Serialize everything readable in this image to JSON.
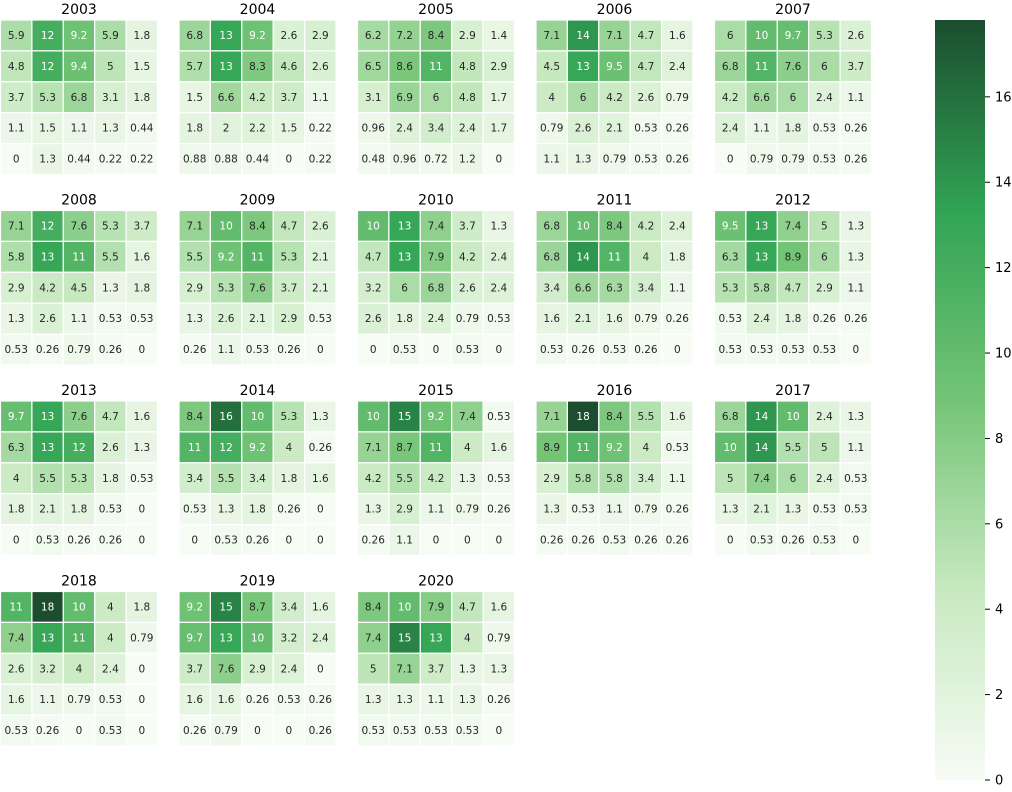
{
  "chart_data": {
    "type": "heatmap",
    "colormap": {
      "name": "Greens",
      "vmin": 0,
      "vmax": 17.8,
      "stops": [
        "#f7fcf5",
        "#c7e9c0",
        "#74c476",
        "#31a354",
        "#1b4d2e"
      ],
      "ticks": [
        "0",
        "2",
        "4",
        "6",
        "8",
        "10",
        "12",
        "14",
        "16"
      ]
    },
    "panels": [
      {
        "title": "2003",
        "values": [
          [
            "5.9",
            "12",
            "9.2",
            "5.9",
            "1.8"
          ],
          [
            "4.8",
            "12",
            "9.4",
            "5",
            "1.5"
          ],
          [
            "3.7",
            "5.3",
            "6.8",
            "3.1",
            "1.8"
          ],
          [
            "1.1",
            "1.5",
            "1.1",
            "1.3",
            "0.44"
          ],
          [
            "0",
            "1.3",
            "0.44",
            "0.22",
            "0.22"
          ]
        ]
      },
      {
        "title": "2004",
        "values": [
          [
            "6.8",
            "13",
            "9.2",
            "2.6",
            "2.9"
          ],
          [
            "5.7",
            "13",
            "8.3",
            "4.6",
            "2.6"
          ],
          [
            "1.5",
            "6.6",
            "4.2",
            "3.7",
            "1.1"
          ],
          [
            "1.8",
            "2",
            "2.2",
            "1.5",
            "0.22"
          ],
          [
            "0.88",
            "0.88",
            "0.44",
            "0",
            "0.22"
          ]
        ]
      },
      {
        "title": "2005",
        "values": [
          [
            "6.2",
            "7.2",
            "8.4",
            "2.9",
            "1.4"
          ],
          [
            "6.5",
            "8.6",
            "11",
            "4.8",
            "2.9"
          ],
          [
            "3.1",
            "6.9",
            "6",
            "4.8",
            "1.7"
          ],
          [
            "0.96",
            "2.4",
            "3.4",
            "2.4",
            "1.7"
          ],
          [
            "0.48",
            "0.96",
            "0.72",
            "1.2",
            "0"
          ]
        ]
      },
      {
        "title": "2006",
        "values": [
          [
            "7.1",
            "14",
            "7.1",
            "4.7",
            "1.6"
          ],
          [
            "4.5",
            "13",
            "9.5",
            "4.7",
            "2.4"
          ],
          [
            "4",
            "6",
            "4.2",
            "2.6",
            "0.79"
          ],
          [
            "0.79",
            "2.6",
            "2.1",
            "0.53",
            "0.26"
          ],
          [
            "1.1",
            "1.3",
            "0.79",
            "0.53",
            "0.26"
          ]
        ]
      },
      {
        "title": "2007",
        "values": [
          [
            "6",
            "10",
            "9.7",
            "5.3",
            "2.6"
          ],
          [
            "6.8",
            "11",
            "7.6",
            "6",
            "3.7"
          ],
          [
            "4.2",
            "6.6",
            "6",
            "2.4",
            "1.1"
          ],
          [
            "2.4",
            "1.1",
            "1.8",
            "0.53",
            "0.26"
          ],
          [
            "0",
            "0.79",
            "0.79",
            "0.53",
            "0.26"
          ]
        ]
      },
      {
        "title": "2008",
        "values": [
          [
            "7.1",
            "12",
            "7.6",
            "5.3",
            "3.7"
          ],
          [
            "5.8",
            "13",
            "11",
            "5.5",
            "1.6"
          ],
          [
            "2.9",
            "4.2",
            "4.5",
            "1.3",
            "1.8"
          ],
          [
            "1.3",
            "2.6",
            "1.1",
            "0.53",
            "0.53"
          ],
          [
            "0.53",
            "0.26",
            "0.79",
            "0.26",
            "0"
          ]
        ]
      },
      {
        "title": "2009",
        "values": [
          [
            "7.1",
            "10",
            "8.4",
            "4.7",
            "2.6"
          ],
          [
            "5.5",
            "9.2",
            "11",
            "5.3",
            "2.1"
          ],
          [
            "2.9",
            "5.3",
            "7.6",
            "3.7",
            "2.1"
          ],
          [
            "1.3",
            "2.6",
            "2.1",
            "2.9",
            "0.53"
          ],
          [
            "0.26",
            "1.1",
            "0.53",
            "0.26",
            "0"
          ]
        ]
      },
      {
        "title": "2010",
        "values": [
          [
            "10",
            "13",
            "7.4",
            "3.7",
            "1.3"
          ],
          [
            "4.7",
            "13",
            "7.9",
            "4.2",
            "2.4"
          ],
          [
            "3.2",
            "6",
            "6.8",
            "2.6",
            "2.4"
          ],
          [
            "2.6",
            "1.8",
            "2.4",
            "0.79",
            "0.53"
          ],
          [
            "0",
            "0.53",
            "0",
            "0.53",
            "0"
          ]
        ]
      },
      {
        "title": "2011",
        "values": [
          [
            "6.8",
            "10",
            "8.4",
            "4.2",
            "2.4"
          ],
          [
            "6.8",
            "14",
            "11",
            "4",
            "1.8"
          ],
          [
            "3.4",
            "6.6",
            "6.3",
            "3.4",
            "1.1"
          ],
          [
            "1.6",
            "2.1",
            "1.6",
            "0.79",
            "0.26"
          ],
          [
            "0.53",
            "0.26",
            "0.53",
            "0.26",
            "0"
          ]
        ]
      },
      {
        "title": "2012",
        "values": [
          [
            "9.5",
            "13",
            "7.4",
            "5",
            "1.3"
          ],
          [
            "6.3",
            "13",
            "8.9",
            "6",
            "1.3"
          ],
          [
            "5.3",
            "5.8",
            "4.7",
            "2.9",
            "1.1"
          ],
          [
            "0.53",
            "2.4",
            "1.8",
            "0.26",
            "0.26"
          ],
          [
            "0.53",
            "0.53",
            "0.53",
            "0.53",
            "0"
          ]
        ]
      },
      {
        "title": "2013",
        "values": [
          [
            "9.7",
            "13",
            "7.6",
            "4.7",
            "1.6"
          ],
          [
            "6.3",
            "13",
            "12",
            "2.6",
            "1.3"
          ],
          [
            "4",
            "5.5",
            "5.3",
            "1.8",
            "0.53"
          ],
          [
            "1.8",
            "2.1",
            "1.8",
            "0.53",
            "0"
          ],
          [
            "0",
            "0.53",
            "0.26",
            "0.26",
            "0"
          ]
        ]
      },
      {
        "title": "2014",
        "values": [
          [
            "8.4",
            "16",
            "10",
            "5.3",
            "1.3"
          ],
          [
            "11",
            "12",
            "9.2",
            "4",
            "0.26"
          ],
          [
            "3.4",
            "5.5",
            "3.4",
            "1.8",
            "1.6"
          ],
          [
            "0.53",
            "1.3",
            "1.8",
            "0.26",
            "0"
          ],
          [
            "0",
            "0.53",
            "0.26",
            "0",
            "0"
          ]
        ]
      },
      {
        "title": "2015",
        "values": [
          [
            "10",
            "15",
            "9.2",
            "7.4",
            "0.53"
          ],
          [
            "7.1",
            "8.7",
            "11",
            "4",
            "1.6"
          ],
          [
            "4.2",
            "5.5",
            "4.2",
            "1.3",
            "0.53"
          ],
          [
            "1.3",
            "2.9",
            "1.1",
            "0.79",
            "0.26"
          ],
          [
            "0.26",
            "1.1",
            "0",
            "0",
            "0"
          ]
        ]
      },
      {
        "title": "2016",
        "values": [
          [
            "7.1",
            "18",
            "8.4",
            "5.5",
            "1.6"
          ],
          [
            "8.9",
            "11",
            "9.2",
            "4",
            "0.53"
          ],
          [
            "2.9",
            "5.8",
            "5.8",
            "3.4",
            "1.1"
          ],
          [
            "1.3",
            "0.53",
            "1.1",
            "0.79",
            "0.26"
          ],
          [
            "0.26",
            "0.26",
            "0.53",
            "0.26",
            "0.26"
          ]
        ]
      },
      {
        "title": "2017",
        "values": [
          [
            "6.8",
            "14",
            "10",
            "2.4",
            "1.3"
          ],
          [
            "10",
            "14",
            "5.5",
            "5",
            "1.1"
          ],
          [
            "5",
            "7.4",
            "6",
            "2.4",
            "0.53"
          ],
          [
            "1.3",
            "2.1",
            "1.3",
            "0.53",
            "0.53"
          ],
          [
            "0",
            "0.53",
            "0.26",
            "0.53",
            "0"
          ]
        ]
      },
      {
        "title": "2018",
        "values": [
          [
            "11",
            "18",
            "10",
            "4",
            "1.8"
          ],
          [
            "7.4",
            "13",
            "11",
            "4",
            "0.79"
          ],
          [
            "2.6",
            "3.2",
            "4",
            "2.4",
            "0"
          ],
          [
            "1.6",
            "1.1",
            "0.79",
            "0.53",
            "0"
          ],
          [
            "0.53",
            "0.26",
            "0",
            "0.53",
            "0"
          ]
        ]
      },
      {
        "title": "2019",
        "values": [
          [
            "9.2",
            "15",
            "8.7",
            "3.4",
            "1.6"
          ],
          [
            "9.7",
            "13",
            "10",
            "3.2",
            "2.4"
          ],
          [
            "3.7",
            "7.6",
            "2.9",
            "2.4",
            "0"
          ],
          [
            "1.6",
            "1.6",
            "0.26",
            "0.53",
            "0.26"
          ],
          [
            "0.26",
            "0.79",
            "0",
            "0",
            "0.26"
          ]
        ]
      },
      {
        "title": "2020",
        "values": [
          [
            "8.4",
            "10",
            "7.9",
            "4.7",
            "1.6"
          ],
          [
            "7.4",
            "15",
            "13",
            "4",
            "0.79"
          ],
          [
            "5",
            "7.1",
            "3.7",
            "1.3",
            "1.3"
          ],
          [
            "1.3",
            "1.3",
            "1.1",
            "1.3",
            "0.26"
          ],
          [
            "0.53",
            "0.53",
            "0.53",
            "0.53",
            "0"
          ]
        ]
      }
    ]
  }
}
